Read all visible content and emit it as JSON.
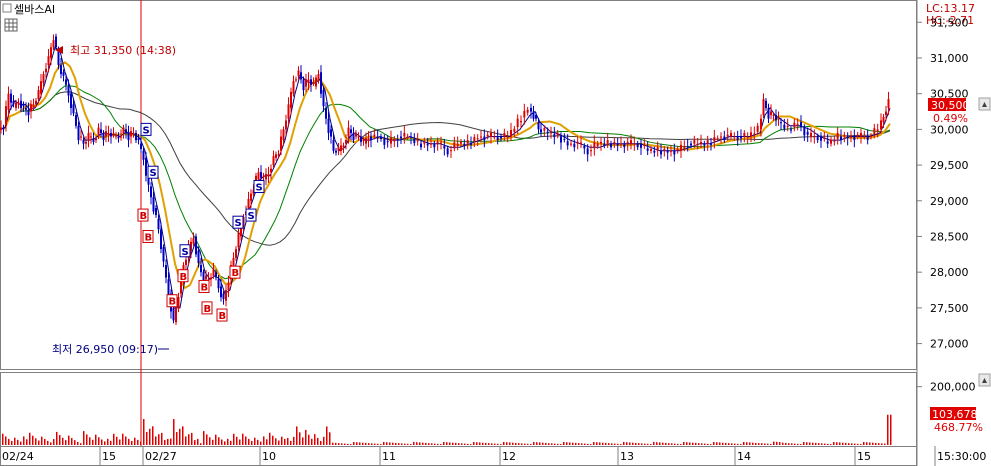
{
  "header": {
    "stock_name": "셀바스AI",
    "lc_label": "LC:13.17",
    "hc_label": "HC:-2.71"
  },
  "chart_data": [
    {
      "type": "candlestick",
      "title": "",
      "ylim": [
        26700,
        31700
      ],
      "y_ticks": [
        "31,500",
        "31,000",
        "30,500",
        "30,000",
        "29,500",
        "29,000",
        "28,500",
        "28,000",
        "27,500",
        "27,000"
      ],
      "y_tick_values": [
        31500,
        31000,
        30500,
        30000,
        29500,
        29000,
        28500,
        28000,
        27500,
        27000
      ],
      "current_price_label": "30,500",
      "current_price": 30500,
      "change_label": "0.49%",
      "high_annotation": "최고 31,350 (14:38)",
      "low_annotation": "최저 26,950 (09:17)",
      "high_value": 31350,
      "low_value": 26950,
      "signals": [
        {
          "type": "S",
          "x": 146,
          "price": 30000
        },
        {
          "type": "B",
          "x": 143,
          "price": 28800
        },
        {
          "type": "B",
          "x": 148,
          "price": 28500
        },
        {
          "type": "S",
          "x": 153,
          "price": 29400
        },
        {
          "type": "S",
          "x": 185,
          "price": 28300
        },
        {
          "type": "B",
          "x": 172,
          "price": 27600
        },
        {
          "type": "B",
          "x": 183,
          "price": 27950
        },
        {
          "type": "B",
          "x": 204,
          "price": 27800
        },
        {
          "type": "B",
          "x": 207,
          "price": 27500
        },
        {
          "type": "B",
          "x": 222,
          "price": 27400
        },
        {
          "type": "B",
          "x": 235,
          "price": 28000
        },
        {
          "type": "S",
          "x": 238,
          "price": 28700
        },
        {
          "type": "S",
          "x": 251,
          "price": 28800
        },
        {
          "type": "S",
          "x": 259,
          "price": 29200
        }
      ],
      "price_series": [
        [
          0,
          30000
        ],
        [
          5,
          30050
        ],
        [
          10,
          30500
        ],
        [
          15,
          30300
        ],
        [
          20,
          30400
        ],
        [
          25,
          30300
        ],
        [
          30,
          30250
        ],
        [
          35,
          30350
        ],
        [
          40,
          30500
        ],
        [
          45,
          30800
        ],
        [
          50,
          31000
        ],
        [
          55,
          31300
        ],
        [
          60,
          30900
        ],
        [
          65,
          30700
        ],
        [
          70,
          30500
        ],
        [
          75,
          30200
        ],
        [
          80,
          29900
        ],
        [
          85,
          29800
        ],
        [
          90,
          29900
        ],
        [
          95,
          29850
        ],
        [
          100,
          30000
        ],
        [
          105,
          29900
        ],
        [
          110,
          29950
        ],
        [
          115,
          29900
        ],
        [
          120,
          29900
        ],
        [
          125,
          30000
        ],
        [
          130,
          29900
        ],
        [
          135,
          29950
        ],
        [
          140,
          29800
        ],
        [
          145,
          29600
        ],
        [
          150,
          29200
        ],
        [
          155,
          28900
        ],
        [
          160,
          28600
        ],
        [
          165,
          28100
        ],
        [
          170,
          27700
        ],
        [
          175,
          27300
        ],
        [
          180,
          27700
        ],
        [
          185,
          28100
        ],
        [
          190,
          28300
        ],
        [
          195,
          28500
        ],
        [
          200,
          28100
        ],
        [
          205,
          27900
        ],
        [
          210,
          27900
        ],
        [
          215,
          28000
        ],
        [
          220,
          27800
        ],
        [
          225,
          27600
        ],
        [
          230,
          27900
        ],
        [
          235,
          28200
        ],
        [
          240,
          28500
        ],
        [
          245,
          28800
        ],
        [
          250,
          29000
        ],
        [
          255,
          29200
        ],
        [
          260,
          29400
        ],
        [
          265,
          29300
        ],
        [
          270,
          29400
        ],
        [
          275,
          29600
        ],
        [
          280,
          29700
        ],
        [
          285,
          30000
        ],
        [
          290,
          30300
        ],
        [
          295,
          30700
        ],
        [
          300,
          30800
        ],
        [
          305,
          30600
        ],
        [
          310,
          30700
        ],
        [
          315,
          30600
        ],
        [
          320,
          30800
        ],
        [
          325,
          30300
        ],
        [
          330,
          30000
        ],
        [
          335,
          29700
        ],
        [
          340,
          29700
        ],
        [
          345,
          29800
        ],
        [
          350,
          30000
        ],
        [
          355,
          29900
        ],
        [
          360,
          29900
        ],
        [
          365,
          29800
        ],
        [
          370,
          29900
        ],
        [
          380,
          29900
        ],
        [
          390,
          29800
        ],
        [
          400,
          29900
        ],
        [
          410,
          29900
        ],
        [
          420,
          29800
        ],
        [
          430,
          29800
        ],
        [
          440,
          29800
        ],
        [
          450,
          29700
        ],
        [
          460,
          29800
        ],
        [
          470,
          29800
        ],
        [
          480,
          29900
        ],
        [
          490,
          29900
        ],
        [
          500,
          29900
        ],
        [
          510,
          29900
        ],
        [
          520,
          30100
        ],
        [
          530,
          30300
        ],
        [
          535,
          30200
        ],
        [
          540,
          30000
        ],
        [
          550,
          29950
        ],
        [
          560,
          29900
        ],
        [
          570,
          29800
        ],
        [
          580,
          29800
        ],
        [
          590,
          29700
        ],
        [
          600,
          29800
        ],
        [
          610,
          29800
        ],
        [
          620,
          29800
        ],
        [
          630,
          29800
        ],
        [
          640,
          29800
        ],
        [
          650,
          29700
        ],
        [
          660,
          29700
        ],
        [
          670,
          29700
        ],
        [
          680,
          29700
        ],
        [
          690,
          29800
        ],
        [
          700,
          29800
        ],
        [
          710,
          29800
        ],
        [
          720,
          29900
        ],
        [
          730,
          29900
        ],
        [
          740,
          29900
        ],
        [
          750,
          29900
        ],
        [
          760,
          30000
        ],
        [
          765,
          30400
        ],
        [
          770,
          30200
        ],
        [
          775,
          30200
        ],
        [
          780,
          30100
        ],
        [
          790,
          30000
        ],
        [
          800,
          30100
        ],
        [
          810,
          29900
        ],
        [
          820,
          29900
        ],
        [
          830,
          29800
        ],
        [
          840,
          29900
        ],
        [
          850,
          29900
        ],
        [
          860,
          29900
        ],
        [
          870,
          29900
        ],
        [
          880,
          30000
        ],
        [
          885,
          30200
        ],
        [
          890,
          30400
        ]
      ],
      "ma_short_color": "#000080",
      "ma_mid_color": "#e0a000",
      "ma_long_color": "#008000",
      "ma_vlong_color": "#404040"
    },
    {
      "type": "bar",
      "title": "",
      "y_ticks": [
        "200,000"
      ],
      "y_tick_values": [
        200000
      ],
      "ylim": [
        0,
        240000
      ],
      "current_volume_label": "103,678",
      "volume_ratio_label": "468.77%",
      "volume_color": "#c00000"
    }
  ],
  "x_axis": {
    "labels": [
      "02/24",
      "15",
      "02/27",
      "10",
      "11",
      "12",
      "13",
      "14",
      "15",
      "15:30:00"
    ],
    "positions": [
      0,
      100,
      143,
      260,
      380,
      500,
      618,
      735,
      855,
      935
    ]
  }
}
